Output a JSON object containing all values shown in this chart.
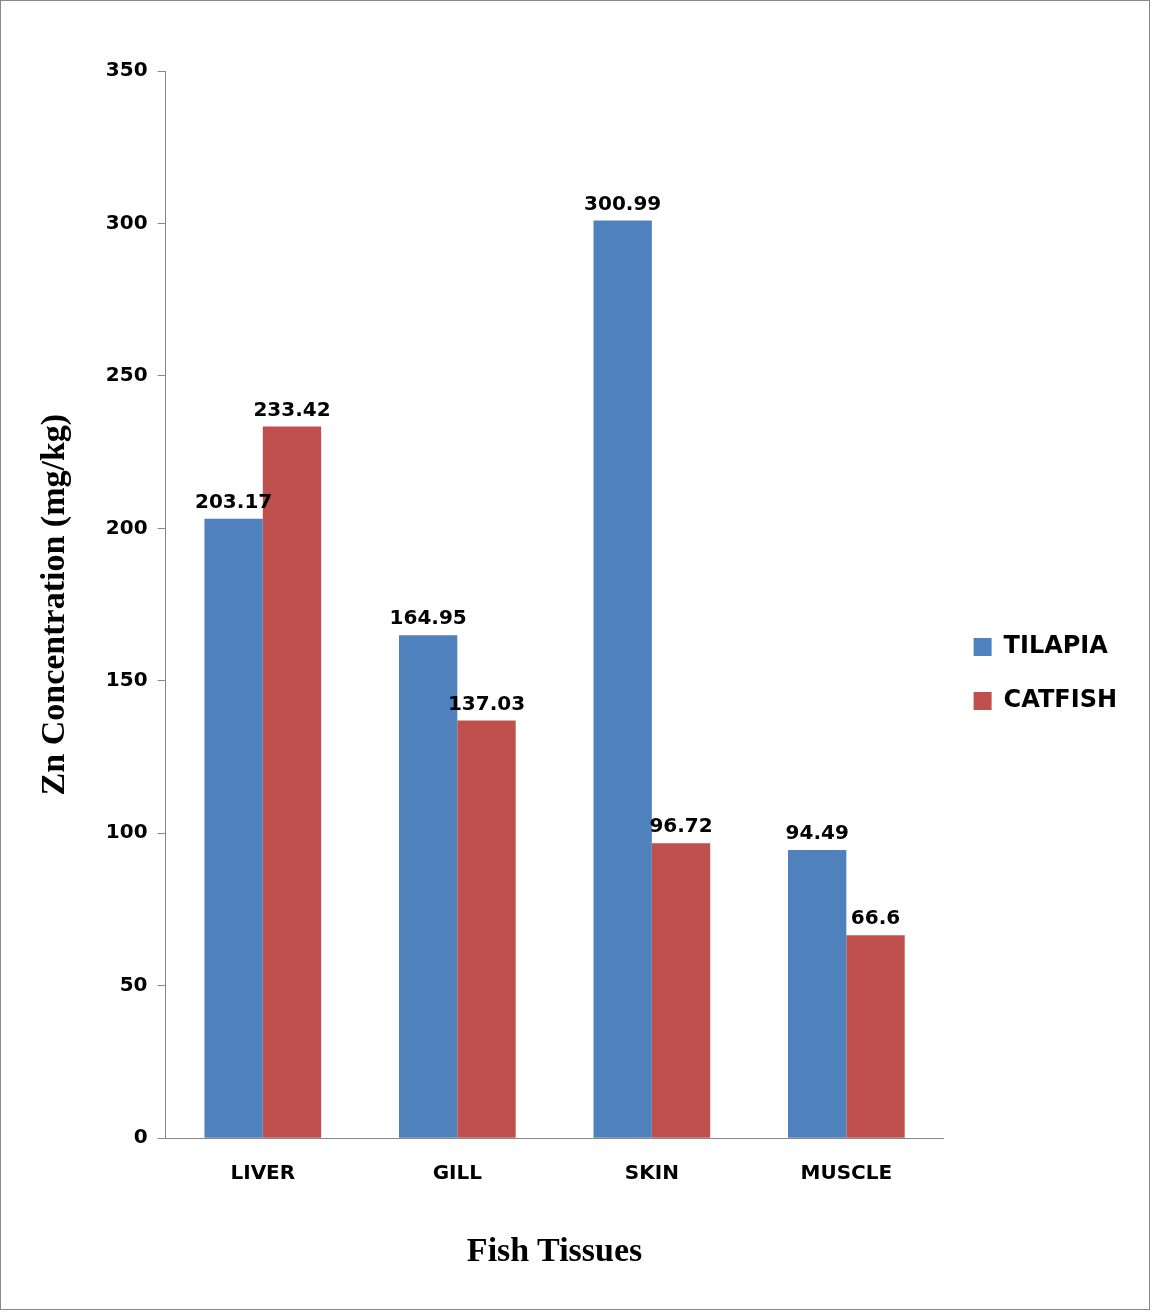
{
  "chart_data": {
    "type": "bar",
    "xlabel": "Fish Tissues",
    "ylabel": "Zn Concentration (mg/kg)",
    "categories": [
      "LIVER",
      "GILL",
      "SKIN",
      "MUSCLE"
    ],
    "series": [
      {
        "name": "TILAPIA",
        "color": "#4f81bd",
        "values": [
          203.17,
          164.95,
          300.99,
          94.49
        ]
      },
      {
        "name": "CATFISH",
        "color": "#c0504d",
        "values": [
          233.42,
          137.03,
          96.72,
          66.6
        ]
      }
    ],
    "ylim": [
      0,
      350
    ],
    "yticks": [
      0,
      50,
      100,
      150,
      200,
      250,
      300,
      350
    ],
    "grid": false,
    "legend": "right",
    "data_labels": true
  }
}
